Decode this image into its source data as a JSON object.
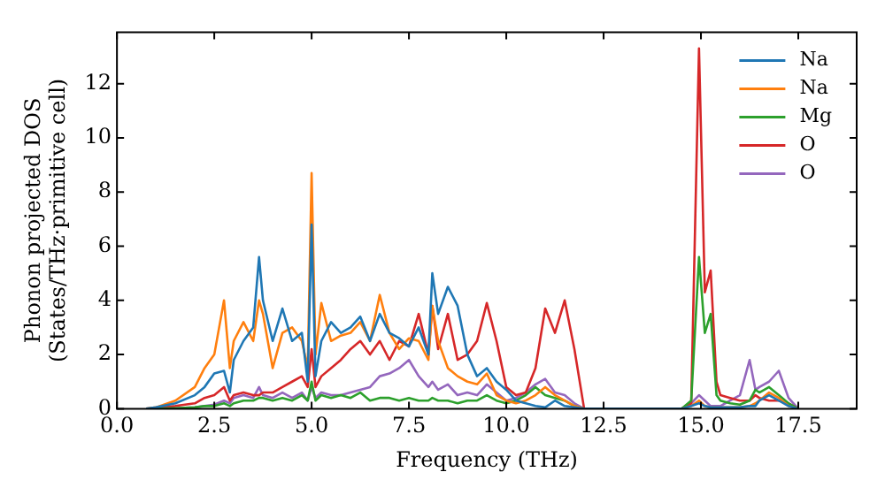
{
  "chart_data": {
    "type": "line",
    "xlabel": "Frequency (THz)",
    "ylabel": "Phonon projected DOS\n(States/THz·primitive cell)",
    "x": [
      0.75,
      1.0,
      1.5,
      2.0,
      2.25,
      2.5,
      2.75,
      2.9,
      3.0,
      3.25,
      3.5,
      3.65,
      3.75,
      4.0,
      4.25,
      4.5,
      4.75,
      4.9,
      5.0,
      5.1,
      5.25,
      5.5,
      5.75,
      6.0,
      6.25,
      6.5,
      6.75,
      7.0,
      7.25,
      7.5,
      7.75,
      8.0,
      8.1,
      8.25,
      8.5,
      8.75,
      9.0,
      9.25,
      9.5,
      9.75,
      10.0,
      10.25,
      10.5,
      10.75,
      11.0,
      11.25,
      11.5,
      11.75,
      12.0,
      14.5,
      14.75,
      14.95,
      15.1,
      15.25,
      15.4,
      15.5,
      15.75,
      16.0,
      16.25,
      16.4,
      16.5,
      16.75,
      17.0,
      17.25,
      17.5
    ],
    "series": [
      {
        "name": "Na",
        "color": "#1f77b4",
        "values": [
          0,
          0.05,
          0.2,
          0.5,
          0.8,
          1.3,
          1.4,
          0.6,
          1.8,
          2.5,
          3.0,
          5.6,
          4.0,
          2.5,
          3.7,
          2.5,
          2.8,
          1.0,
          6.8,
          1.2,
          2.5,
          3.2,
          2.8,
          3.0,
          3.4,
          2.5,
          3.5,
          2.8,
          2.6,
          2.3,
          3.0,
          2.0,
          5.0,
          3.5,
          4.5,
          3.8,
          2.0,
          1.2,
          1.5,
          1.0,
          0.7,
          0.3,
          0.2,
          0.1,
          0.05,
          0.3,
          0.1,
          0.05,
          0,
          0,
          0.1,
          0.2,
          0.1,
          0.05,
          0.05,
          0.05,
          0.05,
          0.05,
          0.1,
          0.1,
          0.3,
          0.5,
          0.3,
          0.1,
          0
        ]
      },
      {
        "name": "Na",
        "color": "#ff7f0e",
        "values": [
          0,
          0.05,
          0.3,
          0.8,
          1.5,
          2.0,
          4.0,
          1.5,
          2.5,
          3.2,
          2.5,
          4.0,
          3.5,
          1.5,
          2.8,
          3.0,
          2.5,
          1.5,
          8.7,
          2.0,
          3.9,
          2.5,
          2.7,
          2.8,
          3.2,
          2.5,
          4.2,
          2.8,
          2.2,
          2.6,
          2.5,
          1.8,
          3.8,
          2.5,
          1.5,
          1.2,
          1.0,
          0.9,
          1.3,
          0.5,
          0.3,
          0.2,
          0.3,
          0.5,
          0.8,
          0.5,
          0.3,
          0.1,
          0,
          0,
          0.1,
          0.3,
          0.1,
          0.05,
          0.05,
          0.05,
          0.05,
          0.05,
          0.1,
          0.2,
          0.3,
          0.6,
          0.4,
          0.1,
          0
        ]
      },
      {
        "name": "Mg",
        "color": "#2ca02c",
        "values": [
          0,
          0,
          0.02,
          0.05,
          0.1,
          0.1,
          0.2,
          0.1,
          0.2,
          0.3,
          0.3,
          0.4,
          0.4,
          0.3,
          0.4,
          0.3,
          0.5,
          0.3,
          1.0,
          0.3,
          0.5,
          0.4,
          0.5,
          0.4,
          0.6,
          0.3,
          0.4,
          0.4,
          0.3,
          0.4,
          0.3,
          0.3,
          0.4,
          0.3,
          0.3,
          0.2,
          0.3,
          0.3,
          0.5,
          0.3,
          0.2,
          0.3,
          0.5,
          0.8,
          0.5,
          0.4,
          0.3,
          0.1,
          0,
          0,
          0.3,
          5.6,
          2.8,
          3.5,
          0.5,
          0.3,
          0.2,
          0.15,
          0.3,
          0.7,
          0.6,
          0.8,
          0.5,
          0.2,
          0
        ]
      },
      {
        "name": "O",
        "color": "#d62728",
        "values": [
          0,
          0.02,
          0.1,
          0.2,
          0.4,
          0.5,
          0.8,
          0.3,
          0.5,
          0.6,
          0.5,
          0.5,
          0.6,
          0.6,
          0.8,
          1.0,
          1.2,
          0.8,
          2.2,
          0.8,
          1.2,
          1.5,
          1.8,
          2.2,
          2.5,
          2.0,
          2.5,
          1.8,
          2.5,
          2.3,
          3.5,
          2.0,
          3.8,
          2.2,
          3.5,
          1.8,
          2.0,
          2.5,
          3.9,
          2.5,
          0.8,
          0.5,
          0.6,
          1.5,
          3.7,
          2.8,
          4.0,
          2.2,
          0,
          0,
          0.2,
          13.3,
          4.3,
          5.1,
          1.0,
          0.5,
          0.4,
          0.3,
          0.3,
          0.5,
          0.4,
          0.3,
          0.3,
          0.2,
          0
        ]
      },
      {
        "name": "O",
        "color": "#9467bd",
        "values": [
          0,
          0,
          0.02,
          0.05,
          0.1,
          0.15,
          0.3,
          0.2,
          0.4,
          0.5,
          0.4,
          0.8,
          0.5,
          0.4,
          0.6,
          0.4,
          0.6,
          0.3,
          0.8,
          0.4,
          0.6,
          0.5,
          0.5,
          0.6,
          0.7,
          0.8,
          1.2,
          1.3,
          1.5,
          1.8,
          1.2,
          0.8,
          1.0,
          0.7,
          0.9,
          0.5,
          0.6,
          0.5,
          0.9,
          0.6,
          0.3,
          0.4,
          0.6,
          0.9,
          1.1,
          0.6,
          0.5,
          0.2,
          0,
          0,
          0.2,
          0.5,
          0.3,
          0.1,
          0.1,
          0.1,
          0.3,
          0.5,
          1.8,
          0.7,
          0.8,
          1.0,
          1.4,
          0.4,
          0
        ]
      }
    ],
    "xlim": [
      0,
      19
    ],
    "xticks": [
      {
        "value": 0,
        "label": "0.0"
      },
      {
        "value": 2.5,
        "label": "2.5"
      },
      {
        "value": 5,
        "label": "5.0"
      },
      {
        "value": 7.5,
        "label": "7.5"
      },
      {
        "value": 10,
        "label": "10.0"
      },
      {
        "value": 12.5,
        "label": "12.5"
      },
      {
        "value": 15,
        "label": "15.0"
      },
      {
        "value": 17.5,
        "label": "17.5"
      }
    ],
    "ylim": [
      0,
      13.9
    ],
    "yticks": [
      0,
      2,
      4,
      6,
      8,
      10,
      12
    ],
    "grid": false,
    "legend": "top right",
    "marker": "none",
    "line_style": "solid"
  }
}
